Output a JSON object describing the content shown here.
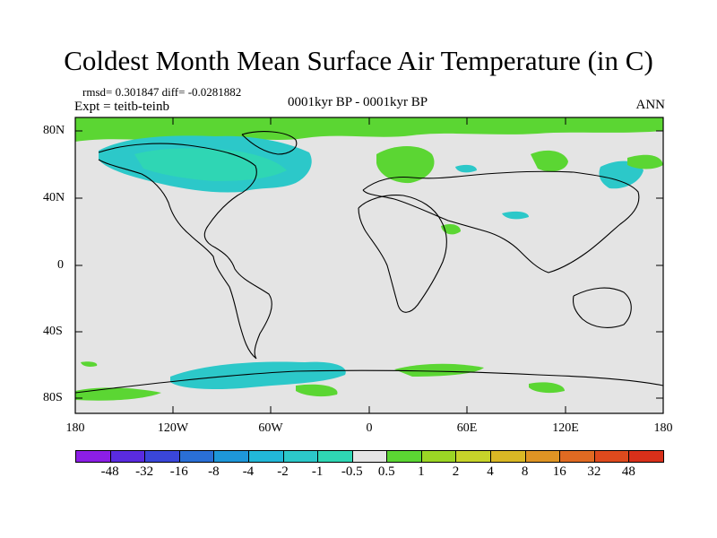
{
  "title": "Coldest Month Mean Surface Air Temperature (in C)",
  "stats": "rmsd= 0.301847 diff= -0.0281882",
  "experiment": "Expt = teitb-teinb",
  "period": "0001kyr BP - 0001kyr BP",
  "season": "ANN",
  "lat_labels": [
    "80N",
    "40N",
    "0",
    "40S",
    "80S"
  ],
  "lon_labels": [
    "180",
    "120W",
    "60W",
    "0",
    "60E",
    "120E",
    "180"
  ],
  "colorbar": {
    "labels": [
      "-48",
      "-32",
      "-16",
      "-8",
      "-4",
      "-2",
      "-1",
      "-0.5",
      "0.5",
      "1",
      "2",
      "4",
      "8",
      "16",
      "32",
      "48"
    ],
    "colors": [
      "#8c1ee6",
      "#5a2be0",
      "#3a46d9",
      "#2a6fd6",
      "#1e97d9",
      "#22b8d8",
      "#2cc8c9",
      "#2fd6b4",
      "#e4e4e4",
      "#5bd633",
      "#9bd625",
      "#c7d42a",
      "#d9b825",
      "#de9424",
      "#e06a22",
      "#de4a1d",
      "#d8301a"
    ]
  },
  "palette": {
    "land_none": "#e4e4e4",
    "cool_1": "#2fd6b4",
    "cool_2": "#2cc8c9",
    "warm_1": "#5bd633",
    "warm_2": "#9bd625"
  }
}
